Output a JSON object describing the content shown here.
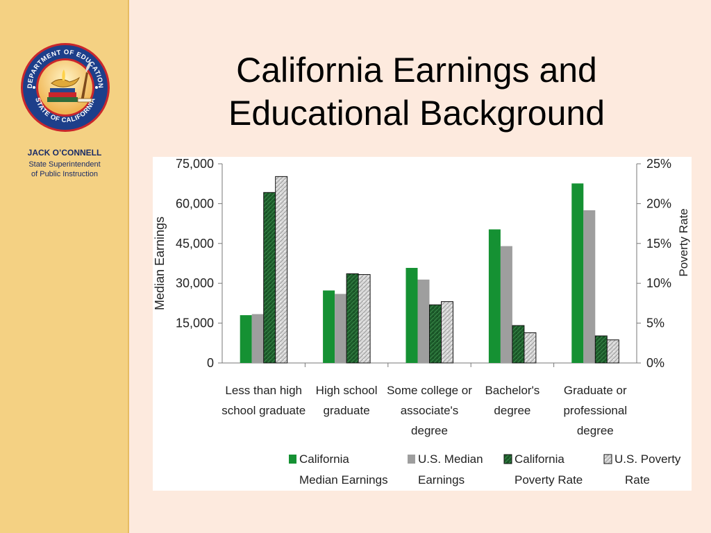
{
  "sidebar": {
    "seal": {
      "icon": "california-department-of-education-seal-icon",
      "top_text": "DEPARTMENT OF EDUCATION",
      "bottom_text": "STATE OF CALIFORNIA"
    },
    "name": "JACK O’CONNELL",
    "title_line1": "State Superintendent",
    "title_line2": "of Public Instruction"
  },
  "slide": {
    "title_line1": "California Earnings and",
    "title_line2": "Educational Background"
  },
  "chart_data": {
    "type": "bar",
    "title": "",
    "categories": [
      [
        "Less than high",
        "school graduate"
      ],
      [
        "High school",
        "graduate"
      ],
      [
        "Some college or",
        "associate's",
        "degree"
      ],
      [
        "Bachelor's",
        "degree"
      ],
      [
        "Graduate or",
        "professional",
        "degree"
      ]
    ],
    "ylabel": "Median Earnings",
    "y2label": "Poverty Rate",
    "ylim": [
      0,
      75000
    ],
    "y2lim": [
      0,
      25
    ],
    "yticks": [
      "0",
      "15,000",
      "30,000",
      "45,000",
      "60,000",
      "75,000"
    ],
    "y2ticks": [
      "0%",
      "5%",
      "10%",
      "15%",
      "20%",
      "25%"
    ],
    "grid": false,
    "legend_position": "bottom",
    "series": [
      {
        "name": "California Median Earnings",
        "legend_lines": [
          "California",
          "Median Earnings"
        ],
        "axis": "left",
        "color": "#159133",
        "values": [
          18000,
          27300,
          35800,
          50300,
          67600
        ]
      },
      {
        "name": "U.S. Median Earnings",
        "legend_lines": [
          "U.S. Median",
          "Earnings"
        ],
        "axis": "left",
        "color": "#9e9e9e",
        "values": [
          18400,
          26000,
          31400,
          44000,
          57500
        ]
      },
      {
        "name": "California Poverty Rate",
        "legend_lines": [
          "California",
          "Poverty Rate"
        ],
        "axis": "right",
        "color": "#1c5a2a",
        "values": [
          21.4,
          11.2,
          7.3,
          4.7,
          3.4
        ]
      },
      {
        "name": "U.S. Poverty Rate",
        "legend_lines": [
          "U.S. Poverty",
          "Rate"
        ],
        "axis": "right",
        "color": "#cfcfcf",
        "values": [
          23.4,
          11.1,
          7.7,
          3.8,
          2.9
        ]
      }
    ]
  }
}
